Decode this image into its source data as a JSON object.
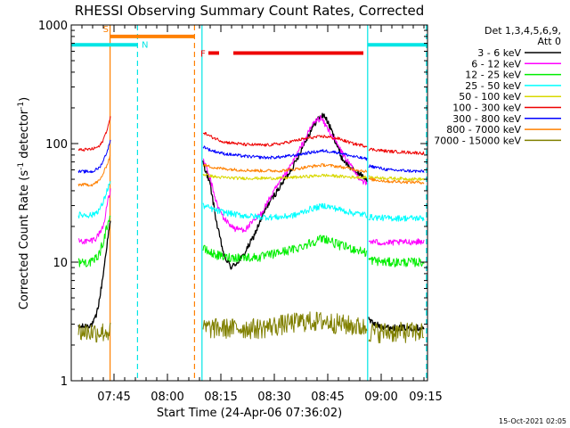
{
  "chart_data": {
    "type": "line",
    "title": "RHESSI Observing Summary Count Rates, Corrected",
    "xlabel": "Start Time (24-Apr-06 07:36:02)",
    "ylabel_main": "Corrected Count Rate (s",
    "ylabel_sup1": "-1",
    "ylabel_mid": " detector",
    "ylabel_sup2": "-1",
    "ylabel_end": ")",
    "footer": "15-Oct-2021 02:05",
    "y_scale": "log",
    "ylim": [
      1,
      1000
    ],
    "xlim_minutes": [
      -3,
      97
    ],
    "y_ticks": [
      {
        "value": 1,
        "label": "1"
      },
      {
        "value": 10,
        "label": "10"
      },
      {
        "value": 100,
        "label": "100"
      },
      {
        "value": 1000,
        "label": "1000"
      }
    ],
    "x_ticks": [
      {
        "minute": 9,
        "label": "07:45"
      },
      {
        "minute": 24,
        "label": "08:00"
      },
      {
        "minute": 39,
        "label": "08:15"
      },
      {
        "minute": 54,
        "label": "08:30"
      },
      {
        "minute": 69,
        "label": "08:45"
      },
      {
        "minute": 84,
        "label": "09:00"
      },
      {
        "minute": 99,
        "label": "09:15"
      }
    ],
    "legend": {
      "placement": "right",
      "header_lines": [
        "Det 1,3,4,5,6,9,",
        "Att 0"
      ],
      "entries": [
        {
          "label": "3 - 6 keV",
          "color": "#000000"
        },
        {
          "label": "6 - 12 keV",
          "color": "#ff00ff"
        },
        {
          "label": "12 - 25 keV",
          "color": "#00ee00"
        },
        {
          "label": "25 - 50 keV",
          "color": "#00ffff"
        },
        {
          "label": "50 - 100 keV",
          "color": "#d8d800"
        },
        {
          "label": "100 - 300 keV",
          "color": "#ee0000"
        },
        {
          "label": "300 - 800 keV",
          "color": "#0000ff"
        },
        {
          "label": "800 - 7000 keV",
          "color": "#ff8000"
        },
        {
          "label": "7000 - 15000 keV",
          "color": "#808000"
        }
      ]
    },
    "annotations": [
      {
        "label": "S",
        "color": "#ff8000",
        "start_minute": 7.9,
        "end_minute": 31.6,
        "value": 800
      },
      {
        "label": "N",
        "color": "#00e5e5",
        "start_minute": -3,
        "end_minute": 15.5,
        "value": 680
      },
      {
        "label": "F",
        "color": "#ee0000",
        "start_minute": 34.5,
        "end_minute": 79,
        "value": 580
      }
    ],
    "vertical_lines": [
      {
        "minute": 7.9,
        "color": "#ff8000",
        "style": "solid"
      },
      {
        "minute": 15.6,
        "color": "#00e5e5",
        "style": "dashed"
      },
      {
        "minute": 31.6,
        "color": "#ff8000",
        "style": "dashed"
      },
      {
        "minute": 33.7,
        "color": "#00e5e5",
        "style": "solid"
      },
      {
        "minute": 80.2,
        "color": "#00e5e5",
        "style": "solid"
      },
      {
        "minute": 96.7,
        "color": "#00e5e5",
        "style": "dashed"
      }
    ],
    "series": [
      {
        "name": "3 - 6 keV",
        "color": "#000000",
        "points": [
          [
            -1,
            2.8
          ],
          [
            3,
            3.0
          ],
          [
            4,
            3.5
          ],
          [
            5,
            5
          ],
          [
            6,
            8
          ],
          [
            7,
            14
          ],
          [
            8,
            22
          ],
          null,
          [
            34,
            70
          ],
          [
            36,
            45
          ],
          [
            38,
            20
          ],
          [
            40,
            11
          ],
          [
            42,
            9
          ],
          [
            45,
            11
          ],
          [
            48,
            16
          ],
          [
            52,
            30
          ],
          [
            56,
            45
          ],
          [
            60,
            70
          ],
          [
            63,
            110
          ],
          [
            66,
            160
          ],
          [
            68,
            175
          ],
          [
            70,
            130
          ],
          [
            73,
            75
          ],
          [
            76,
            60
          ],
          [
            78,
            55
          ],
          [
            80,
            50
          ],
          null,
          [
            80.5,
            3.3
          ],
          [
            82,
            3.0
          ],
          [
            86,
            2.8
          ],
          [
            96,
            2.8
          ]
        ],
        "noise": 0.06
      },
      {
        "name": "6 - 12 keV",
        "color": "#ff00ff",
        "points": [
          [
            -1,
            15
          ],
          [
            2,
            15
          ],
          [
            4,
            16
          ],
          [
            6,
            20
          ],
          [
            7,
            30
          ],
          [
            8,
            40
          ],
          null,
          [
            34,
            75
          ],
          [
            36,
            50
          ],
          [
            38,
            30
          ],
          [
            40,
            23
          ],
          [
            43,
            19
          ],
          [
            46,
            19
          ],
          [
            50,
            25
          ],
          [
            54,
            40
          ],
          [
            58,
            60
          ],
          [
            62,
            100
          ],
          [
            65,
            150
          ],
          [
            67,
            165
          ],
          [
            70,
            120
          ],
          [
            74,
            75
          ],
          [
            77,
            55
          ],
          [
            80,
            45
          ],
          null,
          [
            80.5,
            15
          ],
          [
            85,
            14.5
          ],
          [
            96,
            15
          ]
        ],
        "noise": 0.06
      },
      {
        "name": "12 - 25 keV",
        "color": "#00ee00",
        "points": [
          [
            -1,
            10
          ],
          [
            3,
            10
          ],
          [
            5,
            12
          ],
          [
            6,
            15
          ],
          [
            7,
            20
          ],
          [
            8,
            25
          ],
          null,
          [
            34,
            13
          ],
          [
            36,
            12
          ],
          [
            40,
            11
          ],
          [
            45,
            11
          ],
          [
            50,
            11
          ],
          [
            55,
            12
          ],
          [
            60,
            13
          ],
          [
            65,
            15
          ],
          [
            68,
            16
          ],
          [
            72,
            14
          ],
          [
            76,
            13
          ],
          [
            80,
            12
          ],
          null,
          [
            80.5,
            10.5
          ],
          [
            85,
            10
          ],
          [
            96,
            10
          ]
        ],
        "noise": 0.09
      },
      {
        "name": "25 - 50 keV",
        "color": "#00ffff",
        "points": [
          [
            -1,
            25
          ],
          [
            3,
            25
          ],
          [
            5,
            28
          ],
          [
            6,
            32
          ],
          [
            7,
            40
          ],
          [
            8,
            48
          ],
          null,
          [
            34,
            30
          ],
          [
            38,
            27
          ],
          [
            44,
            25
          ],
          [
            50,
            24
          ],
          [
            56,
            24
          ],
          [
            60,
            25
          ],
          [
            64,
            28
          ],
          [
            68,
            30
          ],
          [
            72,
            28
          ],
          [
            76,
            26
          ],
          [
            80,
            25
          ],
          null,
          [
            80.5,
            24
          ],
          [
            86,
            23.5
          ],
          [
            96,
            23.5
          ]
        ],
        "noise": 0.06
      },
      {
        "name": "50 - 100 keV",
        "color": "#d8d800",
        "points": [
          [
            34,
            55
          ],
          [
            38,
            52
          ],
          [
            44,
            51
          ],
          [
            50,
            51
          ],
          [
            56,
            51
          ],
          [
            60,
            52
          ],
          [
            64,
            53
          ],
          [
            68,
            54
          ],
          [
            72,
            53
          ],
          [
            76,
            52
          ],
          [
            80,
            52
          ],
          null,
          [
            80.5,
            52
          ],
          [
            86,
            51
          ],
          [
            96,
            50
          ]
        ],
        "noise": 0.03
      },
      {
        "name": "100 - 300 keV",
        "color": "#ee0000",
        "points": [
          [
            -1,
            88
          ],
          [
            3,
            90
          ],
          [
            5,
            95
          ],
          [
            6,
            108
          ],
          [
            7,
            130
          ],
          [
            8,
            165
          ],
          null,
          [
            34,
            125
          ],
          [
            36,
            115
          ],
          [
            40,
            103
          ],
          [
            46,
            98
          ],
          [
            52,
            97
          ],
          [
            56,
            100
          ],
          [
            60,
            106
          ],
          [
            64,
            112
          ],
          [
            68,
            115
          ],
          [
            72,
            110
          ],
          [
            76,
            100
          ],
          [
            80,
            95
          ],
          null,
          [
            80.5,
            90
          ],
          [
            86,
            86
          ],
          [
            96,
            83
          ]
        ],
        "noise": 0.03
      },
      {
        "name": "300 - 800 keV",
        "color": "#0000ff",
        "points": [
          [
            -1,
            58
          ],
          [
            3,
            58
          ],
          [
            5,
            63
          ],
          [
            6,
            72
          ],
          [
            7,
            85
          ],
          [
            8,
            105
          ],
          null,
          [
            34,
            95
          ],
          [
            36,
            88
          ],
          [
            40,
            82
          ],
          [
            46,
            78
          ],
          [
            52,
            76
          ],
          [
            56,
            77
          ],
          [
            60,
            80
          ],
          [
            64,
            84
          ],
          [
            68,
            87
          ],
          [
            72,
            84
          ],
          [
            76,
            78
          ],
          [
            80,
            74
          ],
          null,
          [
            80.5,
            65
          ],
          [
            86,
            60
          ],
          [
            96,
            58
          ]
        ],
        "noise": 0.03
      },
      {
        "name": "800 - 7000 keV",
        "color": "#ff8000",
        "points": [
          [
            -1,
            45
          ],
          [
            3,
            45
          ],
          [
            5,
            49
          ],
          [
            6,
            56
          ],
          [
            7,
            66
          ],
          [
            8,
            80
          ],
          null,
          [
            34,
            66
          ],
          [
            38,
            62
          ],
          [
            44,
            60
          ],
          [
            50,
            59
          ],
          [
            56,
            59
          ],
          [
            60,
            61
          ],
          [
            64,
            64
          ],
          [
            68,
            66
          ],
          [
            72,
            64
          ],
          [
            76,
            61
          ],
          [
            80,
            58
          ],
          null,
          [
            80.5,
            50
          ],
          [
            86,
            48
          ],
          [
            96,
            47
          ]
        ],
        "noise": 0.03
      },
      {
        "name": "7000 - 15000 keV",
        "color": "#808000",
        "points": [
          [
            -1,
            2.6
          ],
          [
            8,
            2.6
          ],
          null,
          [
            34,
            2.8
          ],
          [
            50,
            2.8
          ],
          [
            56,
            3.0
          ],
          [
            62,
            3.2
          ],
          [
            68,
            3.2
          ],
          [
            74,
            3.0
          ],
          [
            80,
            2.8
          ],
          null,
          [
            80.5,
            2.6
          ],
          [
            96,
            2.6
          ]
        ],
        "noise": 0.2
      }
    ]
  }
}
